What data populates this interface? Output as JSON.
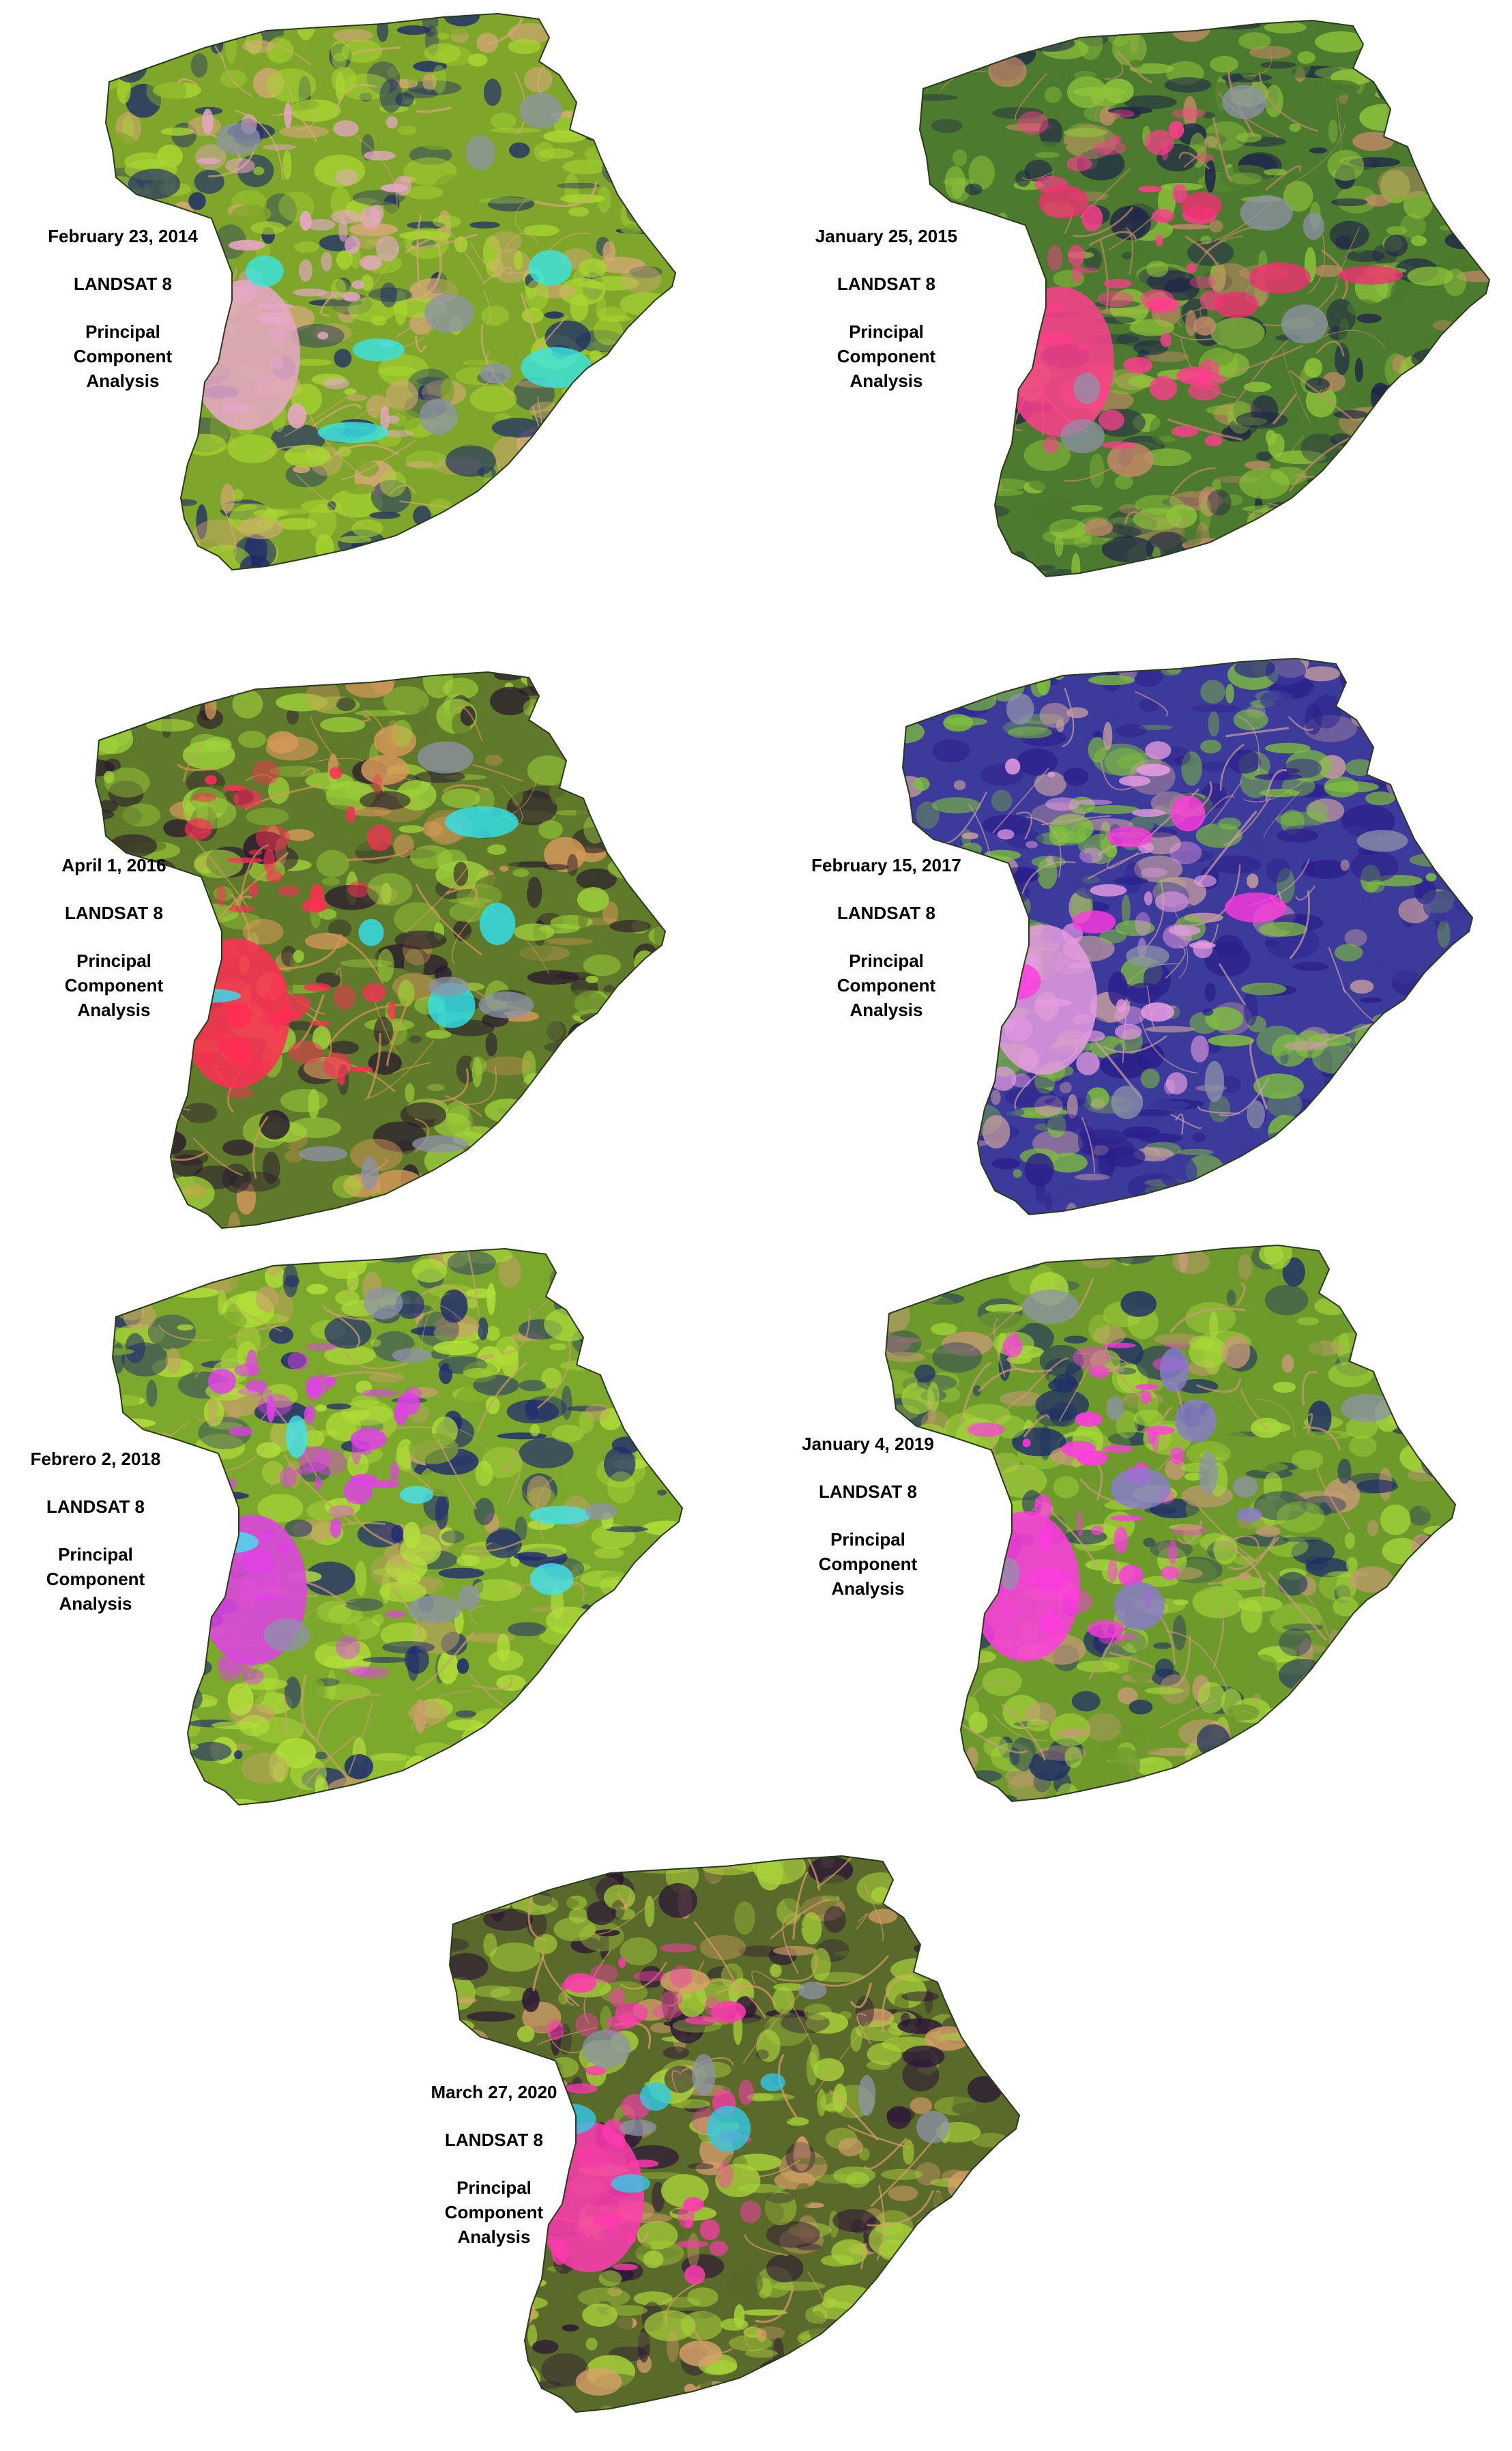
{
  "figure": {
    "panels": [
      {
        "id": "p2014",
        "date": "February 23, 2014",
        "sensor": "LANDSAT 8",
        "method_lines": [
          "Principal",
          "Component",
          "Analysis"
        ],
        "palette": {
          "base": "#7fa62a",
          "veg": "#a9d631",
          "dark": "#1d2a6b",
          "urban": "#e8a7c8",
          "accent": "#39e6e6",
          "road": "#d8a87a"
        }
      },
      {
        "id": "p2015",
        "date": "January 25, 2015",
        "sensor": "LANDSAT 8",
        "method_lines": [
          "Principal",
          "Component",
          "Analysis"
        ],
        "palette": {
          "base": "#4c7a2e",
          "veg": "#8fc43a",
          "dark": "#1e2548",
          "urban": "#ff3d8e",
          "accent": "#f03070",
          "road": "#c88a6a"
        }
      },
      {
        "id": "p2016",
        "date": "April 1, 2016",
        "sensor": "LANDSAT 8",
        "method_lines": [
          "Principal",
          "Component",
          "Analysis"
        ],
        "palette": {
          "base": "#5f7a2a",
          "veg": "#9fd23a",
          "dark": "#2a1a2e",
          "urban": "#ff2d55",
          "accent": "#2fe3f0",
          "road": "#d8995a"
        }
      },
      {
        "id": "p2017",
        "date": "February 15, 2017",
        "sensor": "LANDSAT 8",
        "method_lines": [
          "Principal",
          "Component",
          "Analysis"
        ],
        "palette": {
          "base": "#3c3a9a",
          "veg": "#7fc13a",
          "dark": "#2a1f8a",
          "urban": "#e59be0",
          "accent": "#ff3adf",
          "road": "#c9a0a0"
        }
      },
      {
        "id": "p2018",
        "date": "Febrero 2, 2018",
        "sensor": "LANDSAT 8",
        "method_lines": [
          "Principal",
          "Component",
          "Analysis"
        ],
        "palette": {
          "base": "#7ca82c",
          "veg": "#b4e03a",
          "dark": "#1f2a70",
          "urban": "#e040e8",
          "accent": "#44e2f2",
          "road": "#c9a06a"
        }
      },
      {
        "id": "p2019",
        "date": "January 4, 2019",
        "sensor": "LANDSAT 8",
        "method_lines": [
          "Principal",
          "Component",
          "Analysis"
        ],
        "palette": {
          "base": "#6e9a2c",
          "veg": "#a8d83a",
          "dark": "#1f2e66",
          "urban": "#ff3ae2",
          "accent": "#8a7bd0",
          "road": "#c99a78"
        }
      },
      {
        "id": "p2020",
        "date": "March 27, 2020",
        "sensor": "LANDSAT 8",
        "method_lines": [
          "Principal",
          "Component",
          "Analysis"
        ],
        "palette": {
          "base": "#5a6a2a",
          "veg": "#a9d23a",
          "dark": "#2b1636",
          "urban": "#ff3ab0",
          "accent": "#33c9e6",
          "road": "#d8a06a"
        }
      }
    ]
  }
}
